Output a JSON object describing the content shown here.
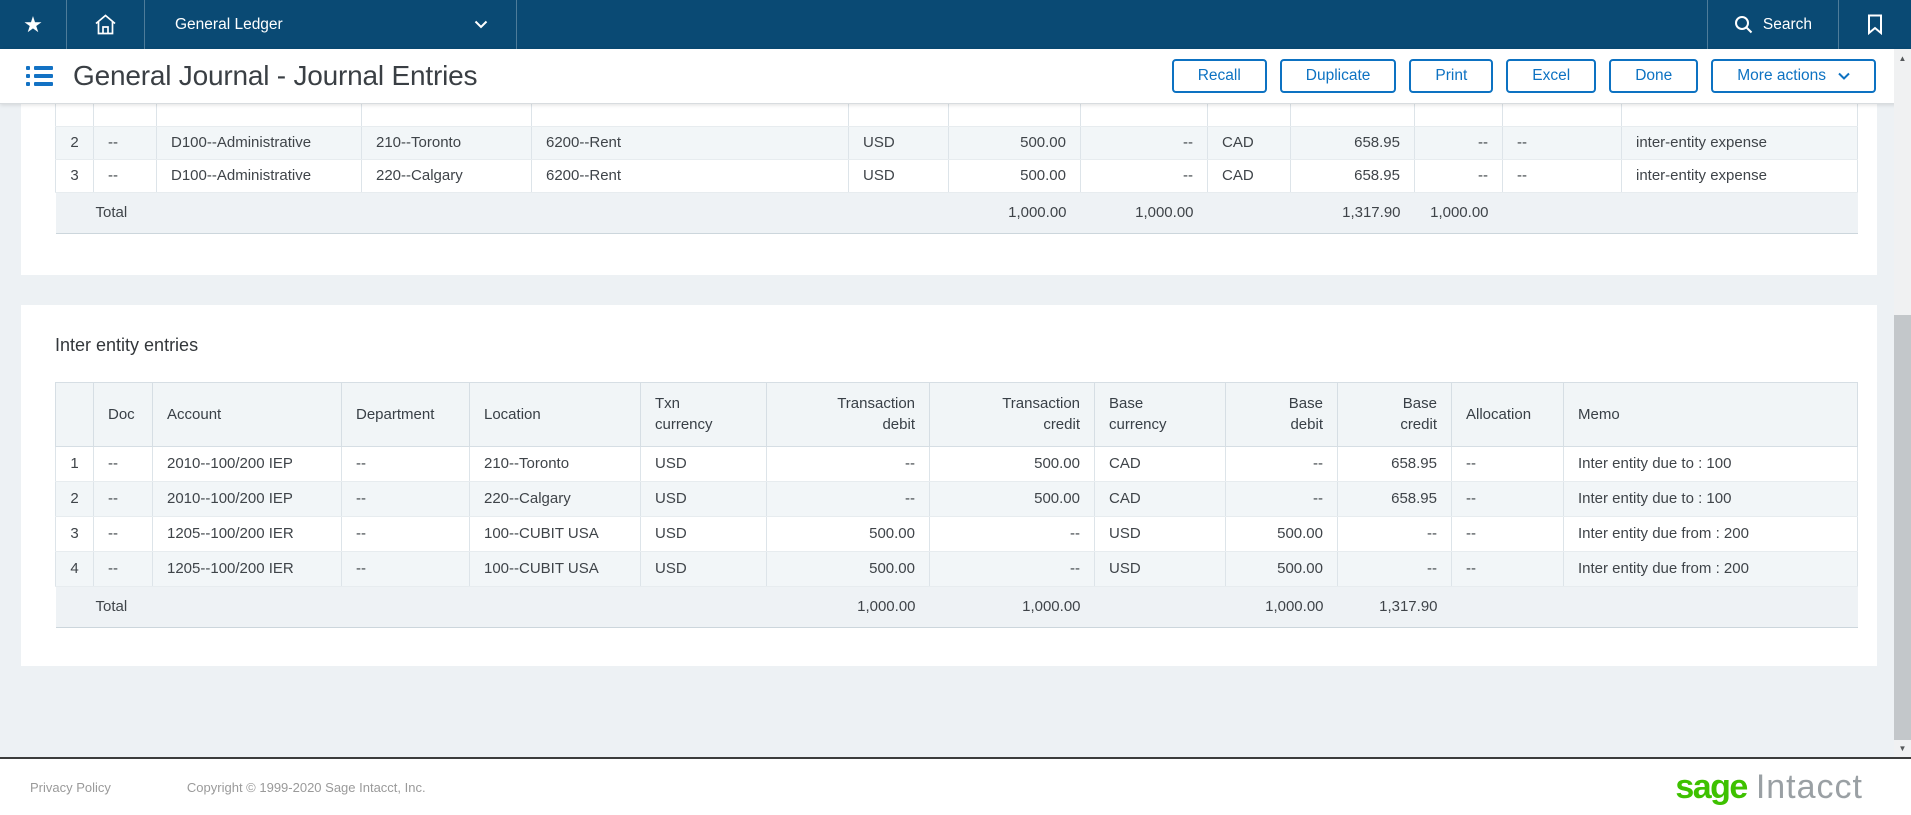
{
  "topbar": {
    "app_menu_label": "General Ledger",
    "search_label": "Search"
  },
  "header": {
    "title": "General Journal - Journal Entries",
    "buttons": [
      "Recall",
      "Duplicate",
      "Print",
      "Excel",
      "Done"
    ],
    "more_actions_label": "More actions"
  },
  "journal_table": {
    "keys": [
      "num",
      "doc",
      "department",
      "location",
      "account",
      "txn_currency",
      "txn_debit",
      "txn_credit",
      "base_currency",
      "base_debit",
      "base_credit",
      "allocation",
      "memo"
    ],
    "rows": [
      {
        "num": "2",
        "doc": "--",
        "department": "D100--Administrative",
        "location": "210--Toronto",
        "account": "6200--Rent",
        "txn_currency": "USD",
        "txn_debit": "500.00",
        "txn_credit": "--",
        "base_currency": "CAD",
        "base_debit": "658.95",
        "base_credit": "--",
        "allocation": "--",
        "memo": "inter-entity expense"
      },
      {
        "num": "3",
        "doc": "--",
        "department": "D100--Administrative",
        "location": "220--Calgary",
        "account": "6200--Rent",
        "txn_currency": "USD",
        "txn_debit": "500.00",
        "txn_credit": "--",
        "base_currency": "CAD",
        "base_debit": "658.95",
        "base_credit": "--",
        "allocation": "--",
        "memo": "inter-entity expense"
      }
    ],
    "total_label": "Total",
    "totals": {
      "txn_debit": "1,000.00",
      "txn_credit": "1,000.00",
      "base_debit": "1,317.90",
      "base_credit": "1,000.00"
    }
  },
  "inter_entity": {
    "heading": "Inter entity entries",
    "keys": [
      "num",
      "doc",
      "account",
      "department",
      "location",
      "txn_currency",
      "txn_debit",
      "txn_credit",
      "base_currency",
      "base_debit",
      "base_credit",
      "allocation",
      "memo"
    ],
    "column_labels": [
      "",
      "Doc",
      "Account",
      "Department",
      "Location",
      "Txn\ncurrency",
      "Transaction\ndebit",
      "Transaction\ncredit",
      "Base\ncurrency",
      "Base\ndebit",
      "Base\ncredit",
      "Allocation",
      "Memo"
    ],
    "rows": [
      {
        "num": "1",
        "doc": "--",
        "account": "2010--100/200 IEP",
        "department": "--",
        "location": "210--Toronto",
        "txn_currency": "USD",
        "txn_debit": "--",
        "txn_credit": "500.00",
        "base_currency": "CAD",
        "base_debit": "--",
        "base_credit": "658.95",
        "allocation": "--",
        "memo": "Inter entity due to : 100"
      },
      {
        "num": "2",
        "doc": "--",
        "account": "2010--100/200 IEP",
        "department": "--",
        "location": "220--Calgary",
        "txn_currency": "USD",
        "txn_debit": "--",
        "txn_credit": "500.00",
        "base_currency": "CAD",
        "base_debit": "--",
        "base_credit": "658.95",
        "allocation": "--",
        "memo": "Inter entity due to : 100"
      },
      {
        "num": "3",
        "doc": "--",
        "account": "1205--100/200 IER",
        "department": "--",
        "location": "100--CUBIT USA",
        "txn_currency": "USD",
        "txn_debit": "500.00",
        "txn_credit": "--",
        "base_currency": "USD",
        "base_debit": "500.00",
        "base_credit": "--",
        "allocation": "--",
        "memo": "Inter entity due from : 200"
      },
      {
        "num": "4",
        "doc": "--",
        "account": "1205--100/200 IER",
        "department": "--",
        "location": "100--CUBIT USA",
        "txn_currency": "USD",
        "txn_debit": "500.00",
        "txn_credit": "--",
        "base_currency": "USD",
        "base_debit": "500.00",
        "base_credit": "--",
        "allocation": "--",
        "memo": "Inter entity due from : 200"
      }
    ],
    "total_label": "Total",
    "totals": {
      "txn_debit": "1,000.00",
      "txn_credit": "1,000.00",
      "base_debit": "1,000.00",
      "base_credit": "1,317.90"
    }
  },
  "footer": {
    "privacy_label": "Privacy Policy",
    "copyright": "Copyright © 1999-2020 Sage Intacct, Inc.",
    "logo_sage": "sage",
    "logo_intacct": "Intacct"
  },
  "colors": {
    "topbar_navy": "#0a4a74",
    "accent_blue": "#0d72c2",
    "sage_green": "#3ec100"
  }
}
